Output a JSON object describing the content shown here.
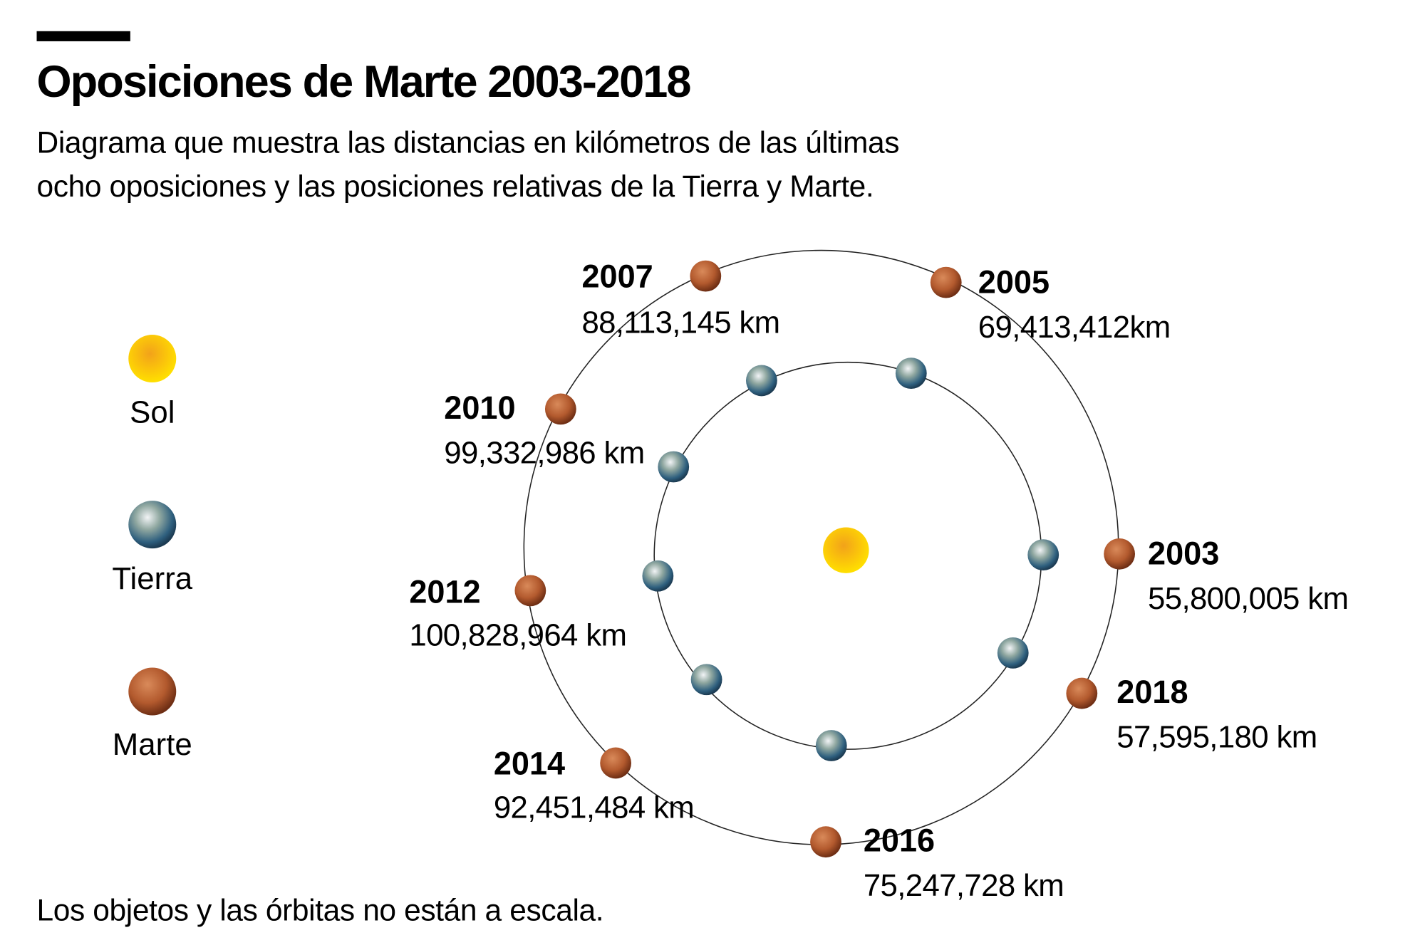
{
  "title": "Oposiciones de Marte 2003-2018",
  "subtitle_lines": [
    "Diagrama que muestra las distancias en kilómetros de las últimas",
    "ocho oposiciones y las posiciones relativas de la Tierra y Marte."
  ],
  "legend": [
    {
      "label": "Sol",
      "icon": "sun-icon"
    },
    {
      "label": "Tierra",
      "icon": "earth-icon"
    },
    {
      "label": "Marte",
      "icon": "mars-icon"
    }
  ],
  "oppositions": [
    {
      "year": "2003",
      "distance": "55,800,005 km"
    },
    {
      "year": "2005",
      "distance": "69,413,412km"
    },
    {
      "year": "2007",
      "distance": "88,113,145 km"
    },
    {
      "year": "2010",
      "distance": "99,332,986 km"
    },
    {
      "year": "2012",
      "distance": "100,828,964 km"
    },
    {
      "year": "2014",
      "distance": "92,451,484 km"
    },
    {
      "year": "2016",
      "distance": "75,247,728 km"
    },
    {
      "year": "2018",
      "distance": "57,595,180 km"
    }
  ],
  "footnote": "Los objetos y las órbitas no están a escala.",
  "colors": {
    "sun": "#f7c400",
    "earth": "#3d6f8e",
    "mars": "#b0552c",
    "orbit": "#222222"
  }
}
